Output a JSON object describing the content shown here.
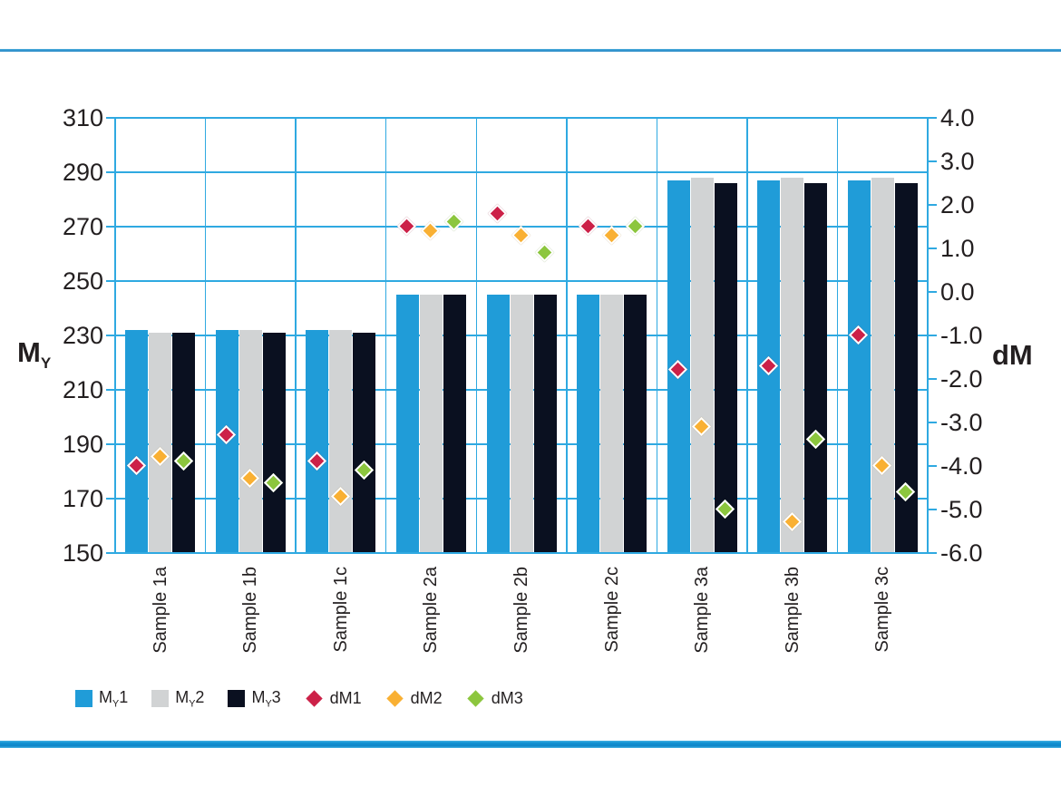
{
  "page": {
    "background": "#ffffff"
  },
  "dividers": {
    "top_color": "#2186c6",
    "bottom_color": "#1291d2"
  },
  "chart_data": {
    "type": "bar+scatter dual-axis",
    "categories": [
      "Sample 1a",
      "Sample 1b",
      "Sample 1c",
      "Sample 2a",
      "Sample 2b",
      "Sample 2c",
      "Sample 3a",
      "Sample 3b",
      "Sample 3c"
    ],
    "left_axis": {
      "title": {
        "main": "M",
        "sub": "Y"
      },
      "min": 150,
      "max": 310,
      "ticks": [
        "310",
        "290",
        "270",
        "250",
        "230",
        "210",
        "190",
        "170",
        "150"
      ]
    },
    "right_axis": {
      "title": "dM",
      "min": -6.0,
      "max": 4.0,
      "ticks": [
        "4.0",
        "3.0",
        "2.0",
        "1.0",
        "0.0",
        "-1.0",
        "-2.0",
        "-3.0",
        "-4.0",
        "-5.0",
        "-6.0"
      ]
    },
    "grid": true,
    "grid_color": "#2fa9e1",
    "text_color": "#231f20",
    "legend_position": "bottom-left",
    "bar_series": [
      {
        "id": "my1",
        "name": "MY1",
        "color": "#209cd8",
        "values": [
          232,
          232,
          232,
          245,
          245,
          245,
          287,
          287,
          287
        ]
      },
      {
        "id": "my2",
        "name": "MY2",
        "color": "#d1d3d4",
        "values": [
          231,
          232,
          232,
          245,
          245,
          245,
          288,
          288,
          288
        ]
      },
      {
        "id": "my3",
        "name": "MY3",
        "color": "#0a1020",
        "values": [
          231,
          231,
          231,
          245,
          245,
          245,
          286,
          286,
          286
        ]
      }
    ],
    "marker_series": [
      {
        "id": "dm1",
        "name": "dM1",
        "color": "#cc2148",
        "values": [
          -4.0,
          -3.3,
          -3.9,
          1.5,
          1.8,
          1.5,
          -1.8,
          -1.7,
          -1.0
        ]
      },
      {
        "id": "dm2",
        "name": "dM2",
        "color": "#f9b033",
        "values": [
          -3.8,
          -4.3,
          -4.7,
          1.4,
          1.3,
          1.3,
          -3.1,
          -5.3,
          -4.0
        ]
      },
      {
        "id": "dm3",
        "name": "dM3",
        "color": "#8cc63e",
        "values": [
          -3.9,
          -4.4,
          -4.1,
          1.6,
          0.9,
          1.5,
          -5.0,
          -3.4,
          -4.6
        ]
      }
    ]
  },
  "legend": {
    "items": [
      {
        "label": {
          "pre": "M",
          "sub": "Y",
          "post": "1"
        },
        "color": "#209cd8",
        "shape": "square"
      },
      {
        "label": {
          "pre": "M",
          "sub": "Y",
          "post": "2"
        },
        "color": "#d1d3d4",
        "shape": "square"
      },
      {
        "label": {
          "pre": "M",
          "sub": "Y",
          "post": "3"
        },
        "color": "#0a1020",
        "shape": "square"
      },
      {
        "label": {
          "pre": "dM1"
        },
        "color": "#cc2148",
        "shape": "diamond"
      },
      {
        "label": {
          "pre": "dM2"
        },
        "color": "#f9b033",
        "shape": "diamond"
      },
      {
        "label": {
          "pre": "dM3"
        },
        "color": "#8cc63e",
        "shape": "diamond"
      }
    ]
  }
}
